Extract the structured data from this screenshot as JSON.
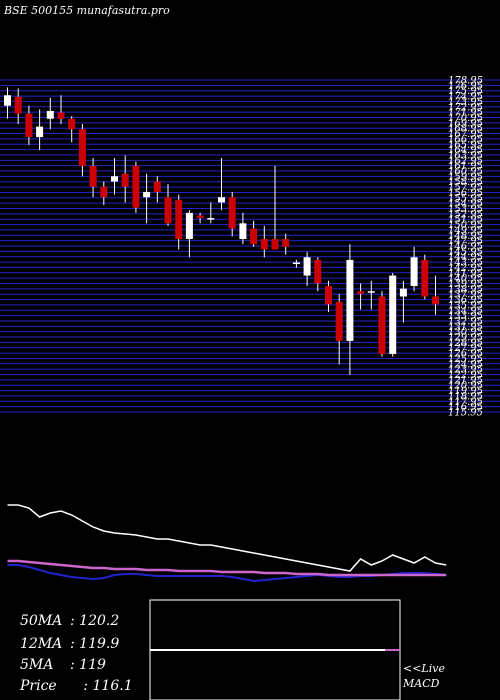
{
  "title": "BSE 500155 munafasutra.pro",
  "colors": {
    "background": "#000000",
    "grid": "#2222cc",
    "up_candle": "#ffffff",
    "down_candle": "#cc0000",
    "wick": "#ffffff",
    "ma_white": "#ffffff",
    "ma_purple": "#cc66cc",
    "ma_blue": "#2222cc",
    "macd_line": "#ffffff",
    "macd_signal": "#cc66cc"
  },
  "stats": {
    "ma50_label": "50MA",
    "ma50_value": ": 120.2",
    "ma12_label": "12MA",
    "ma12_value": ": 119.9",
    "ma5_label": "5MA",
    "ma5_value": ": 119",
    "price_label": "Price",
    "price_value": "   : 116.1"
  },
  "live_label": "<<Live",
  "macd_label": "MACD",
  "chart_data": {
    "type": "candlestick",
    "title": "BSE 500155 munafasutra.pro",
    "ylim": [
      113.9,
      178.95
    ],
    "price_ticks": [
      "178.95",
      "176.95",
      "175.95",
      "174.95",
      "173.95",
      "172.95",
      "171.95",
      "170.95",
      "169.95",
      "168.95",
      "167.95",
      "166.95",
      "165.95",
      "164.95",
      "163.95",
      "162.95",
      "161.95",
      "160.95",
      "159.95",
      "158.95",
      "157.95",
      "156.95",
      "155.95",
      "154.95",
      "153.95",
      "152.95",
      "151.95",
      "150.95",
      "149.95",
      "148.95",
      "147.95",
      "146.95",
      "145.95",
      "144.95",
      "143.95",
      "142.95",
      "141.95",
      "140.95",
      "139.95",
      "138.95",
      "137.95",
      "136.95",
      "135.95",
      "134.95",
      "133.95",
      "132.95",
      "131.95",
      "130.95",
      "129.95",
      "128.95",
      "127.95",
      "126.95",
      "125.95",
      "124.95",
      "123.95",
      "122.95",
      "121.95",
      "120.95",
      "119.95",
      "118.95",
      "117.95",
      "116.95",
      "115.95"
    ],
    "candles": [
      {
        "o": 172.5,
        "h": 176.0,
        "l": 170.0,
        "c": 174.5
      },
      {
        "o": 174.2,
        "h": 175.8,
        "l": 169.0,
        "c": 171.0
      },
      {
        "o": 171.0,
        "h": 172.5,
        "l": 165.0,
        "c": 166.5
      },
      {
        "o": 166.5,
        "h": 171.8,
        "l": 164.0,
        "c": 168.5
      },
      {
        "o": 170.0,
        "h": 174.0,
        "l": 168.0,
        "c": 171.5
      },
      {
        "o": 171.2,
        "h": 174.5,
        "l": 169.0,
        "c": 170.0
      },
      {
        "o": 170.0,
        "h": 170.5,
        "l": 165.5,
        "c": 168.0
      },
      {
        "o": 168.0,
        "h": 169.0,
        "l": 159.0,
        "c": 161.0
      },
      {
        "o": 161.0,
        "h": 162.5,
        "l": 155.0,
        "c": 157.0
      },
      {
        "o": 157.0,
        "h": 158.0,
        "l": 153.5,
        "c": 155.0
      },
      {
        "o": 158.0,
        "h": 162.5,
        "l": 155.5,
        "c": 159.0
      },
      {
        "o": 159.5,
        "h": 163.0,
        "l": 154.0,
        "c": 157.0
      },
      {
        "o": 161.0,
        "h": 161.8,
        "l": 152.0,
        "c": 153.0
      },
      {
        "o": 155.0,
        "h": 159.5,
        "l": 150.0,
        "c": 156.0
      },
      {
        "o": 158.0,
        "h": 159.0,
        "l": 154.0,
        "c": 156.0
      },
      {
        "o": 155.0,
        "h": 157.5,
        "l": 149.5,
        "c": 150.0
      },
      {
        "o": 154.5,
        "h": 155.5,
        "l": 145.0,
        "c": 147.0
      },
      {
        "o": 147.0,
        "h": 152.5,
        "l": 143.5,
        "c": 152.0
      },
      {
        "o": 151.5,
        "h": 152.0,
        "l": 150.0,
        "c": 151.0
      },
      {
        "o": 151.0,
        "h": 154.0,
        "l": 150.0,
        "c": 151.0
      },
      {
        "o": 154.0,
        "h": 162.5,
        "l": 152.5,
        "c": 155.0
      },
      {
        "o": 155.0,
        "h": 156.0,
        "l": 147.5,
        "c": 149.0
      },
      {
        "o": 147.0,
        "h": 152.0,
        "l": 146.0,
        "c": 150.0
      },
      {
        "o": 149.0,
        "h": 150.5,
        "l": 145.5,
        "c": 146.0
      },
      {
        "o": 147.0,
        "h": 149.5,
        "l": 143.5,
        "c": 145.0
      },
      {
        "o": 147.0,
        "h": 161.0,
        "l": 145.5,
        "c": 145.0
      },
      {
        "o": 147.0,
        "h": 148.0,
        "l": 144.0,
        "c": 145.5
      },
      {
        "o": 142.5,
        "h": 143.0,
        "l": 141.5,
        "c": 142.5
      },
      {
        "o": 140.0,
        "h": 144.5,
        "l": 138.0,
        "c": 143.5
      },
      {
        "o": 143.0,
        "h": 143.5,
        "l": 137.0,
        "c": 138.5
      },
      {
        "o": 138.0,
        "h": 139.0,
        "l": 133.0,
        "c": 134.5
      },
      {
        "o": 135.0,
        "h": 136.5,
        "l": 123.0,
        "c": 127.5
      },
      {
        "o": 127.5,
        "h": 146.0,
        "l": 121.0,
        "c": 143.0
      },
      {
        "o": 137.0,
        "h": 138.5,
        "l": 133.5,
        "c": 136.5
      },
      {
        "o": 137.0,
        "h": 139.0,
        "l": 133.5,
        "c": 137.0
      },
      {
        "o": 136.0,
        "h": 137.0,
        "l": 124.5,
        "c": 125.0
      },
      {
        "o": 125.0,
        "h": 140.5,
        "l": 124.5,
        "c": 140.0
      },
      {
        "o": 136.0,
        "h": 139.0,
        "l": 131.0,
        "c": 137.5
      },
      {
        "o": 138.0,
        "h": 145.5,
        "l": 137.0,
        "c": 143.5
      },
      {
        "o": 143.0,
        "h": 144.0,
        "l": 135.5,
        "c": 136.0
      },
      {
        "o": 136.0,
        "h": 140.0,
        "l": 132.5,
        "c": 134.5
      }
    ],
    "indicators": {
      "ma_white": [
        100,
        100,
        97,
        88,
        92,
        94,
        90,
        84,
        78,
        74,
        72,
        71,
        70,
        68,
        66,
        66,
        64,
        62,
        60,
        60,
        58,
        56,
        54,
        52,
        50,
        48,
        46,
        44,
        42,
        40,
        38,
        36,
        34,
        46,
        40,
        44,
        50,
        46,
        42,
        48,
        42,
        40
      ],
      "ma_purple": [
        44,
        44,
        43,
        42,
        41,
        40,
        39,
        38,
        37,
        37,
        36,
        36,
        36,
        35,
        35,
        35,
        34,
        34,
        34,
        34,
        33,
        33,
        33,
        33,
        32,
        32,
        32,
        31,
        31,
        31,
        30,
        30,
        30,
        30,
        30,
        30,
        30,
        30,
        30,
        30,
        30,
        30
      ],
      "ma_blue": [
        40,
        40,
        38,
        35,
        32,
        30,
        28,
        27,
        26,
        27,
        30,
        31,
        31,
        30,
        29,
        29,
        29,
        29,
        29,
        29,
        29,
        28,
        26,
        24,
        25,
        26,
        27,
        28,
        29,
        30,
        29,
        28,
        28,
        29,
        29,
        30,
        31,
        32,
        32,
        32,
        31,
        30
      ]
    },
    "macd": {
      "line": [
        null,
        null,
        null,
        null,
        null,
        null,
        null,
        null,
        null,
        null,
        null,
        null,
        null,
        null,
        null,
        null,
        null,
        null,
        null,
        null,
        null,
        null,
        null,
        null,
        null,
        null,
        null,
        null,
        null,
        null,
        null,
        null,
        null,
        null,
        null,
        null,
        null,
        null,
        null,
        null,
        0,
        0
      ],
      "signal": [
        0,
        0
      ]
    }
  }
}
